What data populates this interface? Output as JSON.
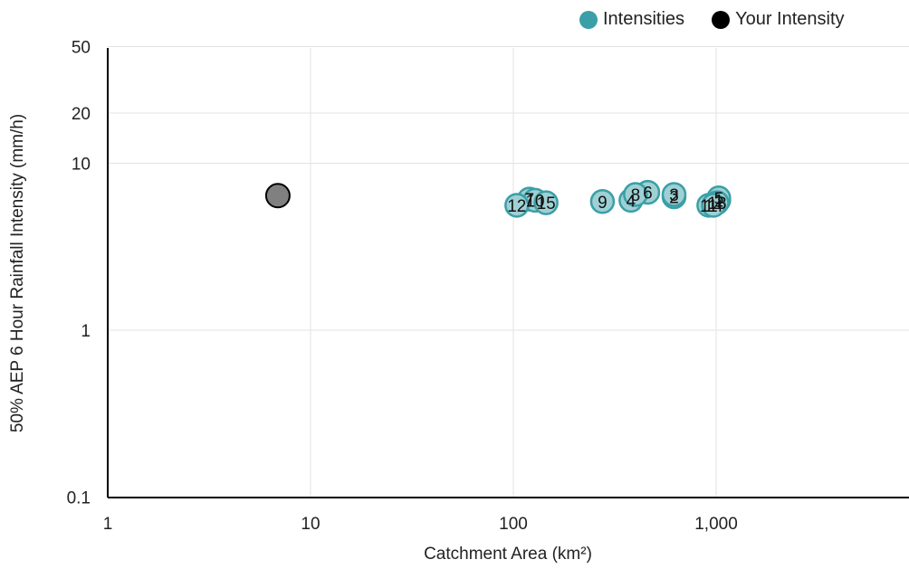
{
  "chart_data": {
    "type": "scatter",
    "title": "",
    "xlabel": "Catchment Area (km²)",
    "ylabel": "50% AEP 6 Hour Rainfall Intensity (mm/h)",
    "x_scale": "log",
    "y_scale": "log",
    "xlim": [
      1,
      8000
    ],
    "ylim": [
      0.1,
      50
    ],
    "x_ticks": [
      1,
      10,
      100,
      1000
    ],
    "x_tick_labels": [
      "1",
      "10",
      "100",
      "1,000"
    ],
    "y_ticks": [
      0.1,
      1,
      10,
      20,
      50
    ],
    "y_tick_labels": [
      "0.1",
      "1",
      "10",
      "20",
      "50"
    ],
    "grid": true,
    "legend_position": "top-right",
    "colors": {
      "intensities": "#3a9fa7",
      "intensities_fill": "#9fd0d3",
      "your_intensity": "#000000",
      "your_intensity_fill": "#808080",
      "grid": "#e3e3e3",
      "axis": "#000000"
    },
    "series": [
      {
        "name": "Intensities",
        "points": [
          {
            "label": "1",
            "x": 1030,
            "y": 6.0
          },
          {
            "label": "2",
            "x": 620,
            "y": 6.3
          },
          {
            "label": "3",
            "x": 620,
            "y": 6.5
          },
          {
            "label": "4",
            "x": 380,
            "y": 6.0
          },
          {
            "label": "5",
            "x": 1030,
            "y": 6.2
          },
          {
            "label": "6",
            "x": 460,
            "y": 6.7
          },
          {
            "label": "7",
            "x": 120,
            "y": 6.1
          },
          {
            "label": "8",
            "x": 400,
            "y": 6.5
          },
          {
            "label": "9",
            "x": 275,
            "y": 5.9
          },
          {
            "label": "10",
            "x": 128,
            "y": 6.0
          },
          {
            "label": "11",
            "x": 920,
            "y": 5.6
          },
          {
            "label": "12",
            "x": 104,
            "y": 5.6
          },
          {
            "label": "13",
            "x": 1010,
            "y": 5.8
          },
          {
            "label": "14",
            "x": 970,
            "y": 5.6
          },
          {
            "label": "15",
            "x": 145,
            "y": 5.8
          }
        ]
      },
      {
        "name": "Your Intensity",
        "points": [
          {
            "label": "",
            "x": 6.9,
            "y": 6.4
          }
        ]
      }
    ]
  }
}
